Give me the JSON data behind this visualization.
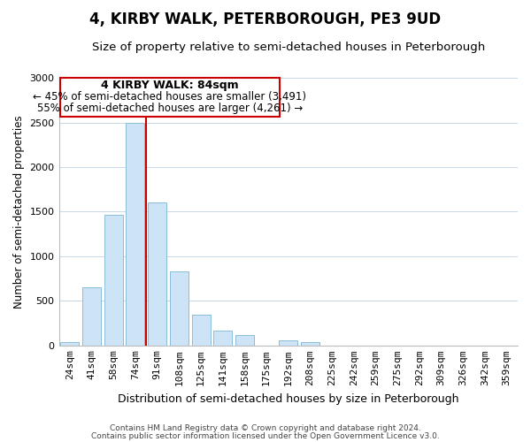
{
  "title": "4, KIRBY WALK, PETERBOROUGH, PE3 9UD",
  "subtitle": "Size of property relative to semi-detached houses in Peterborough",
  "xlabel": "Distribution of semi-detached houses by size in Peterborough",
  "ylabel": "Number of semi-detached properties",
  "footnote1": "Contains HM Land Registry data © Crown copyright and database right 2024.",
  "footnote2": "Contains public sector information licensed under the Open Government Licence v3.0.",
  "bar_labels": [
    "24sqm",
    "41sqm",
    "58sqm",
    "74sqm",
    "91sqm",
    "108sqm",
    "125sqm",
    "141sqm",
    "158sqm",
    "175sqm",
    "192sqm",
    "208sqm",
    "225sqm",
    "242sqm",
    "259sqm",
    "275sqm",
    "292sqm",
    "309sqm",
    "326sqm",
    "342sqm",
    "359sqm"
  ],
  "bar_values": [
    40,
    650,
    1460,
    2500,
    1600,
    830,
    340,
    170,
    115,
    0,
    60,
    40,
    0,
    0,
    0,
    0,
    0,
    0,
    0,
    0,
    0
  ],
  "bar_color": "#cce4f5",
  "bar_edge_color": "#8bbdd9",
  "vline_color": "#cc0000",
  "annotation_box_edge": "#cc0000",
  "annotation_title": "4 KIRBY WALK: 84sqm",
  "annotation_line1": "← 45% of semi-detached houses are smaller (3,491)",
  "annotation_line2": "55% of semi-detached houses are larger (4,261) →",
  "ylim": [
    0,
    3000
  ],
  "yticks": [
    0,
    500,
    1000,
    1500,
    2000,
    2500,
    3000
  ],
  "background_color": "#ffffff",
  "grid_color": "#c8d8e8",
  "title_fontsize": 12,
  "subtitle_fontsize": 9.5,
  "xlabel_fontsize": 9,
  "ylabel_fontsize": 8.5,
  "tick_fontsize": 8,
  "annotation_title_fontsize": 9,
  "annotation_body_fontsize": 8.5,
  "footnote_fontsize": 6.5
}
